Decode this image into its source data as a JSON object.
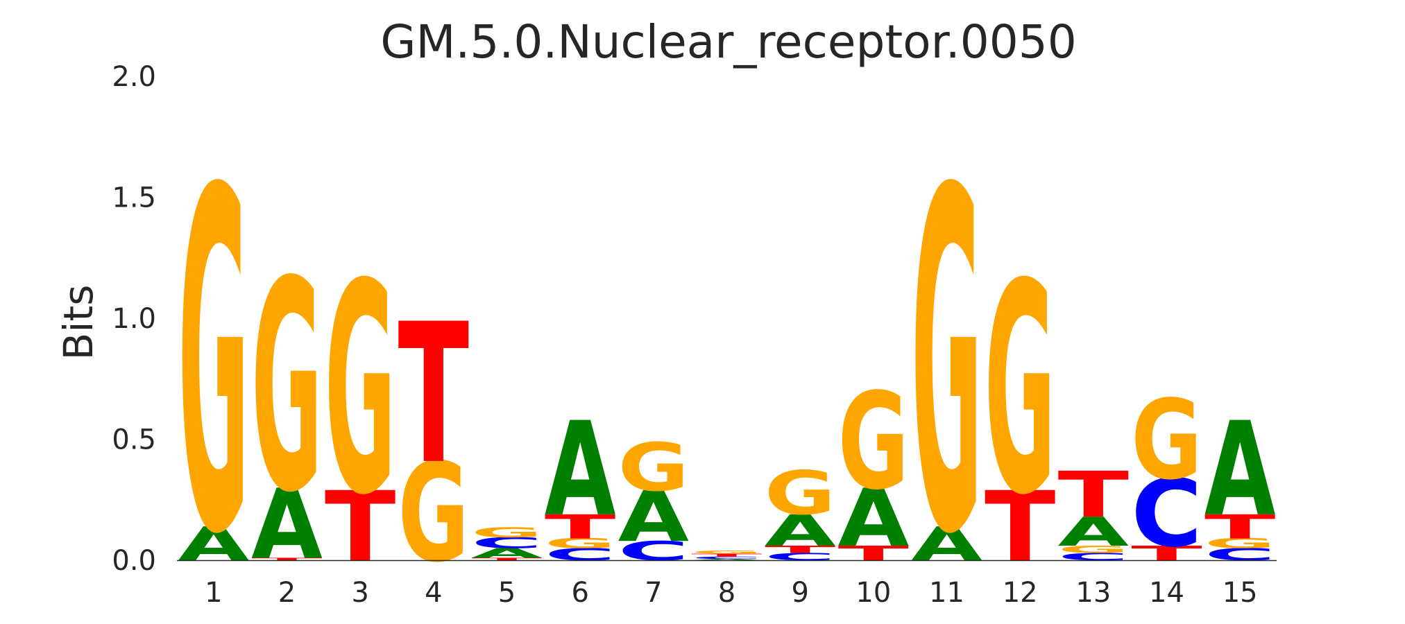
{
  "chart_data": {
    "type": "sequence-logo",
    "title": "GM.5.0.Nuclear_receptor.0050",
    "ylabel": "Bits",
    "xlabel": "",
    "ylim": [
      0,
      2
    ],
    "yticks": [
      "0.0",
      "0.5",
      "1.0",
      "1.5",
      "2.0"
    ],
    "ytick_values": [
      0,
      0.5,
      1.0,
      1.5,
      2.0
    ],
    "grid": false,
    "colors": {
      "A": "#008000",
      "C": "#0000ff",
      "G": "#ffa500",
      "T": "#ff0000"
    },
    "positions": [
      {
        "label": "1",
        "stack": [
          {
            "base": "A",
            "bits": 0.14
          },
          {
            "base": "G",
            "bits": 1.41
          }
        ]
      },
      {
        "label": "2",
        "stack": [
          {
            "base": "T",
            "bits": 0.01
          },
          {
            "base": "A",
            "bits": 0.29
          },
          {
            "base": "G",
            "bits": 0.87
          }
        ]
      },
      {
        "label": "3",
        "stack": [
          {
            "base": "T",
            "bits": 0.29
          },
          {
            "base": "G",
            "bits": 0.87
          }
        ]
      },
      {
        "label": "4",
        "stack": [
          {
            "base": "G",
            "bits": 0.41
          },
          {
            "base": "T",
            "bits": 0.58
          }
        ]
      },
      {
        "label": "5",
        "stack": [
          {
            "base": "T",
            "bits": 0.01
          },
          {
            "base": "A",
            "bits": 0.04
          },
          {
            "base": "C",
            "bits": 0.045
          },
          {
            "base": "G",
            "bits": 0.04
          }
        ]
      },
      {
        "label": "6",
        "stack": [
          {
            "base": "C",
            "bits": 0.05
          },
          {
            "base": "G",
            "bits": 0.04
          },
          {
            "base": "T",
            "bits": 0.1
          },
          {
            "base": "A",
            "bits": 0.39
          }
        ]
      },
      {
        "label": "7",
        "stack": [
          {
            "base": "C",
            "bits": 0.08
          },
          {
            "base": "A",
            "bits": 0.21
          },
          {
            "base": "G",
            "bits": 0.2
          }
        ]
      },
      {
        "label": "8",
        "stack": [
          {
            "base": "A",
            "bits": 0.005
          },
          {
            "base": "C",
            "bits": 0.01
          },
          {
            "base": "T",
            "bits": 0.012
          },
          {
            "base": "G",
            "bits": 0.013
          }
        ]
      },
      {
        "label": "9",
        "stack": [
          {
            "base": "C",
            "bits": 0.03
          },
          {
            "base": "T",
            "bits": 0.03
          },
          {
            "base": "A",
            "bits": 0.13
          },
          {
            "base": "G",
            "bits": 0.18
          }
        ]
      },
      {
        "label": "10",
        "stack": [
          {
            "base": "T",
            "bits": 0.06
          },
          {
            "base": "A",
            "bits": 0.24
          },
          {
            "base": "G",
            "bits": 0.4
          }
        ]
      },
      {
        "label": "11",
        "stack": [
          {
            "base": "A",
            "bits": 0.14
          },
          {
            "base": "G",
            "bits": 1.41
          }
        ]
      },
      {
        "label": "12",
        "stack": [
          {
            "base": "T",
            "bits": 0.29
          },
          {
            "base": "G",
            "bits": 0.87
          }
        ]
      },
      {
        "label": "13",
        "stack": [
          {
            "base": "C",
            "bits": 0.03
          },
          {
            "base": "G",
            "bits": 0.03
          },
          {
            "base": "A",
            "bits": 0.12
          },
          {
            "base": "T",
            "bits": 0.19
          }
        ]
      },
      {
        "label": "14",
        "stack": [
          {
            "base": "T",
            "bits": 0.06
          },
          {
            "base": "C",
            "bits": 0.28
          },
          {
            "base": "G",
            "bits": 0.33
          }
        ]
      },
      {
        "label": "15",
        "stack": [
          {
            "base": "C",
            "bits": 0.05
          },
          {
            "base": "G",
            "bits": 0.04
          },
          {
            "base": "T",
            "bits": 0.1
          },
          {
            "base": "A",
            "bits": 0.39
          }
        ]
      }
    ]
  }
}
